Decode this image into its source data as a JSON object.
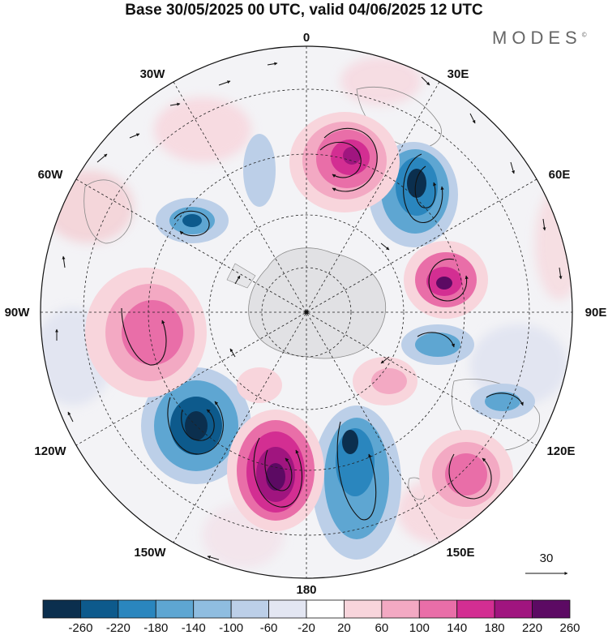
{
  "title": "Base 30/05/2025 00 UTC, valid 04/06/2025 12 UTC",
  "brand": {
    "text": "MODES",
    "mark": "©"
  },
  "map": {
    "projection": "south polar stereographic",
    "grid": true,
    "longitude_labels": [
      "0",
      "30E",
      "60E",
      "90E",
      "120E",
      "150E",
      "180",
      "150W",
      "120W",
      "90W",
      "60W",
      "30W"
    ]
  },
  "reference_vector": {
    "label": "30"
  },
  "colorbar": {
    "ticks": [
      "-260",
      "-220",
      "-180",
      "-140",
      "-100",
      "-60",
      "-20",
      "20",
      "60",
      "100",
      "140",
      "180",
      "220",
      "260"
    ],
    "colors": [
      "#0b2f4e",
      "#0d5a8c",
      "#2a86be",
      "#5ea6d2",
      "#8fbde0",
      "#bccfe8",
      "#e3e6f2",
      "#ffffff",
      "#f8d5dc",
      "#f3a9c3",
      "#e96ea8",
      "#d32e92",
      "#a0157f",
      "#5c0a63"
    ]
  }
}
